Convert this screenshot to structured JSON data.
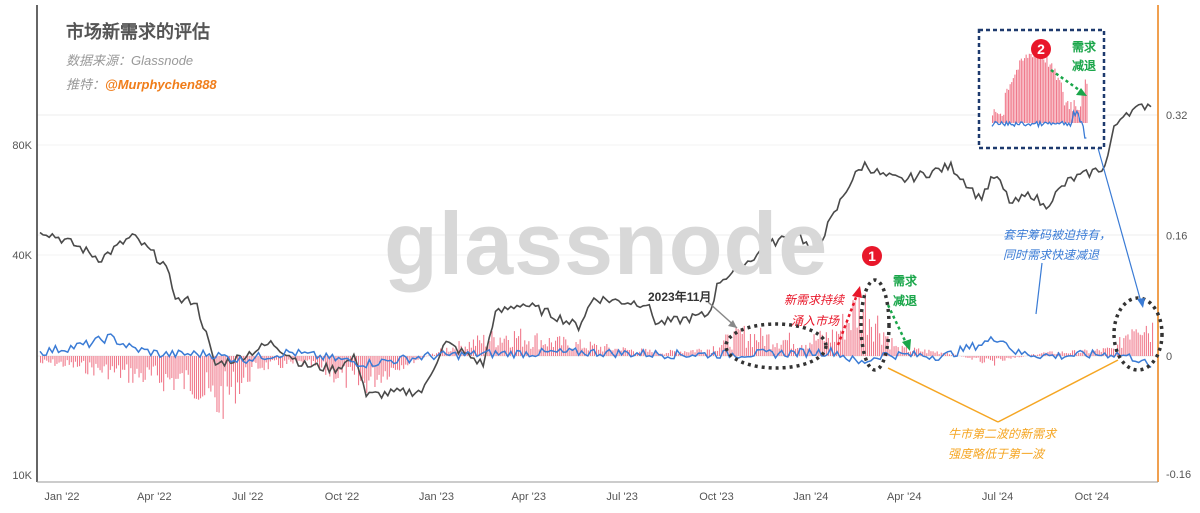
{
  "header": {
    "title": "市场新需求的评估",
    "source": "数据来源：Glassnode",
    "twitter_label": "推特：",
    "twitter_handle": "@Murphychen888"
  },
  "watermark": "glassnode",
  "annotations": {
    "nov2023": "2023年11月",
    "inflow_1": "新需求持续",
    "inflow_2": "涌入市场",
    "decline1_1": "需求",
    "decline1_2": "减退",
    "badge1": "1",
    "badge2": "2",
    "decline2_1": "需求",
    "decline2_2": "减退",
    "trapped_1": "套牢筹码被迫持有，",
    "trapped_2": "同时需求快速减退",
    "second_wave_1": "牛市第二波的新需求",
    "second_wave_2": "强度略低于第一波"
  },
  "colors": {
    "price_line": "#4a4a4a",
    "metric_line": "#3a7bd5",
    "bars": "#f07a8c",
    "axis_right": "#f0a050",
    "green_arrow": "#1aa64a",
    "red_arrow": "#e8172a",
    "orange_arrow": "#f5a623"
  },
  "chart_data": {
    "type": "line",
    "x_ticks": [
      "Jan '22",
      "Apr '22",
      "Jul '22",
      "Oct '22",
      "Jan '23",
      "Apr '23",
      "Jul '23",
      "Oct '23",
      "Jan '24",
      "Apr '24",
      "Jul '24",
      "Oct '24"
    ],
    "y_left_ticks": [
      "80K",
      "40K",
      "10K"
    ],
    "y_left_scale": "log",
    "y_right_ticks": [
      "0.32",
      "0.16",
      "0",
      "-0.16"
    ],
    "y_right_range": [
      -0.16,
      0.36
    ],
    "series": [
      {
        "kind": "line",
        "axis": "left",
        "x": [
          "2022-01-01",
          "2022-02-01",
          "2022-03-01",
          "2022-04-01",
          "2022-05-01",
          "2022-05-15",
          "2022-06-01",
          "2022-06-20",
          "2022-07-15",
          "2022-08-15",
          "2022-09-15",
          "2022-10-15",
          "2022-11-05",
          "2022-11-15",
          "2022-12-15",
          "2023-01-10",
          "2023-01-31",
          "2023-03-10",
          "2023-03-20",
          "2023-04-15",
          "2023-05-15",
          "2023-06-10",
          "2023-06-25",
          "2023-07-15",
          "2023-08-15",
          "2023-08-25",
          "2023-09-15",
          "2023-10-15",
          "2023-10-25",
          "2023-11-15",
          "2023-12-15",
          "2024-01-10",
          "2024-01-25",
          "2024-02-15",
          "2024-02-28",
          "2024-03-14",
          "2024-04-01",
          "2024-04-20",
          "2024-05-15",
          "2024-06-07",
          "2024-07-05",
          "2024-07-20",
          "2024-08-05",
          "2024-08-25",
          "2024-09-06",
          "2024-09-30",
          "2024-10-20",
          "2024-11-05",
          "2024-11-12",
          "2024-11-22",
          "2024-12-05",
          "2024-12-17"
        ],
        "y": [
          47000,
          43000,
          39000,
          45000,
          38000,
          30000,
          30000,
          20000,
          21000,
          23000,
          20000,
          19500,
          21000,
          16500,
          16800,
          17000,
          23000,
          20000,
          27500,
          29500,
          27500,
          25500,
          30500,
          30000,
          29500,
          26000,
          26500,
          27500,
          34000,
          37000,
          43000,
          46000,
          40000,
          52000,
          62000,
          71000,
          66000,
          64000,
          67000,
          70000,
          57000,
          66000,
          55000,
          59000,
          54000,
          64000,
          67000,
          70000,
          87000,
          98000,
          100000,
          104000
        ]
      },
      {
        "kind": "line",
        "axis": "right",
        "x": [
          "2022-01-01",
          "2022-02-15",
          "2022-03-10",
          "2022-04-01",
          "2022-05-01",
          "2022-06-15",
          "2022-07-15",
          "2022-09-01",
          "2022-11-15",
          "2023-01-15",
          "2023-03-15",
          "2023-06-15",
          "2023-09-15",
          "2023-12-15",
          "2024-02-15",
          "2024-03-10",
          "2024-04-01",
          "2024-06-01",
          "2024-07-25",
          "2024-08-10",
          "2024-09-15",
          "2024-11-15",
          "2024-12-10",
          "2024-12-20"
        ],
        "y": [
          0.005,
          0.015,
          0.025,
          0.01,
          0.002,
          0.003,
          -0.005,
          0.005,
          -0.01,
          0.0,
          0.003,
          0.005,
          0.002,
          0.003,
          0.006,
          -0.01,
          0.002,
          0.0,
          0.025,
          0.004,
          0.0,
          0.003,
          -0.005,
          -0.02
        ]
      },
      {
        "kind": "bar",
        "axis": "right",
        "x": [
          "2022-01-15",
          "2022-03-01",
          "2022-04-15",
          "2022-06-01",
          "2022-06-20",
          "2022-08-01",
          "2022-09-15",
          "2022-11-10",
          "2022-12-15",
          "2023-02-01",
          "2023-04-01",
          "2023-05-15",
          "2023-07-15",
          "2023-09-01",
          "2023-10-15",
          "2023-11-15",
          "2023-12-15",
          "2024-01-15",
          "2024-02-15",
          "2024-03-05",
          "2024-03-15",
          "2024-04-15",
          "2024-06-01",
          "2024-07-15",
          "2024-09-01",
          "2024-10-15",
          "2024-11-15",
          "2024-12-05",
          "2024-12-17"
        ],
        "y": [
          -0.01,
          -0.02,
          -0.03,
          -0.04,
          -0.07,
          -0.015,
          -0.01,
          -0.04,
          -0.015,
          0.01,
          0.03,
          0.02,
          0.01,
          0.005,
          0.01,
          0.03,
          0.025,
          0.02,
          0.03,
          0.065,
          0.07,
          0.01,
          0.005,
          -0.01,
          0.004,
          0.006,
          0.01,
          0.06,
          0.04
        ]
      }
    ]
  }
}
